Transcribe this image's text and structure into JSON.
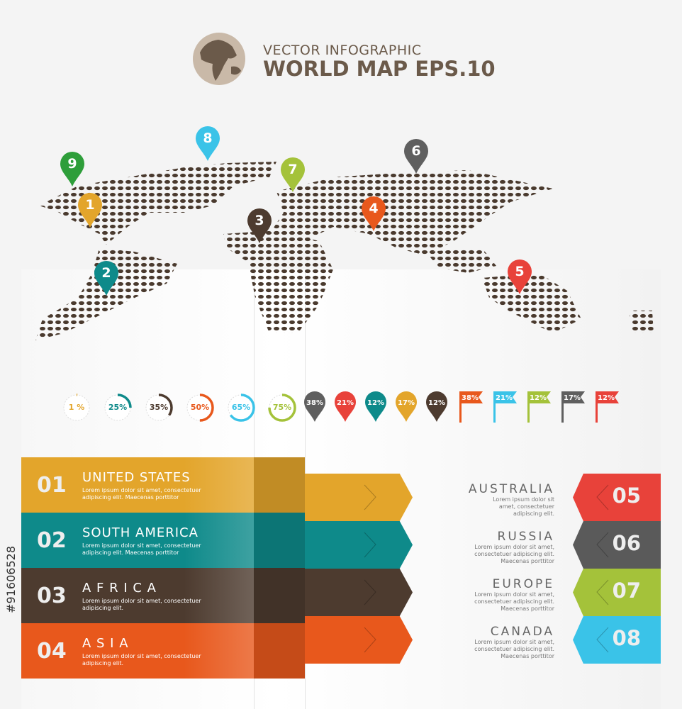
{
  "header": {
    "subtitle": "VECTOR INFOGRAPHIC",
    "title": "WORLD MAP EPS.10"
  },
  "pins": [
    {
      "n": "9",
      "color": "#2e9e3a"
    },
    {
      "n": "8",
      "color": "#3ac3e8"
    },
    {
      "n": "7",
      "color": "#a4c23a"
    },
    {
      "n": "6",
      "color": "#5f5f5f"
    },
    {
      "n": "1",
      "color": "#e3a52b"
    },
    {
      "n": "3",
      "color": "#4d3b2f"
    },
    {
      "n": "4",
      "color": "#e8581c"
    },
    {
      "n": "2",
      "color": "#0e8a8a"
    },
    {
      "n": "5",
      "color": "#e8423a"
    }
  ],
  "rings": [
    {
      "label": "1 %",
      "value": 1,
      "color": "#e3a52b"
    },
    {
      "label": "25%",
      "value": 25,
      "color": "#0e8a8a"
    },
    {
      "label": "35%",
      "value": 35,
      "color": "#4d3b2f"
    },
    {
      "label": "50%",
      "value": 50,
      "color": "#e8581c"
    },
    {
      "label": "65%",
      "value": 65,
      "color": "#3ac3e8"
    },
    {
      "label": "75%",
      "value": 75,
      "color": "#a4c23a"
    }
  ],
  "drops": [
    {
      "label": "38%",
      "color": "#5f5f5f"
    },
    {
      "label": "21%",
      "color": "#e8423a"
    },
    {
      "label": "12%",
      "color": "#0e8a8a"
    },
    {
      "label": "17%",
      "color": "#e3a52b"
    },
    {
      "label": "12%",
      "color": "#4d3b2f"
    }
  ],
  "flags": [
    {
      "label": "38%",
      "color": "#e8581c"
    },
    {
      "label": "21%",
      "color": "#3ac3e8"
    },
    {
      "label": "12%",
      "color": "#a4c23a"
    },
    {
      "label": "17%",
      "color": "#5f5f5f"
    },
    {
      "label": "12%",
      "color": "#e8423a"
    }
  ],
  "left_rows": [
    {
      "num": "01",
      "title": "UNITED STATES",
      "desc": "Lorem ipsum dolor sit amet, consectetuer adipiscing elit. Maecenas porttitor",
      "color": "#e3a52b"
    },
    {
      "num": "02",
      "title": "SOUTH AMERICA",
      "desc": "Lorem ipsum dolor sit amet, consectetuer adipiscing elit. Maecenas porttitor",
      "color": "#0e8a8a"
    },
    {
      "num": "03",
      "title": "A F R I C A",
      "desc": "Lorem ipsum dolor sit amet, consectetuer adipiscing elit.",
      "color": "#4d3b2f"
    },
    {
      "num": "04",
      "title": "A S I A",
      "desc": "Lorem ipsum dolor sit amet, consectetuer adipiscing elit.",
      "color": "#e8581c"
    }
  ],
  "right_rows": [
    {
      "num": "05",
      "title": "AUSTRALIA",
      "desc": "Lorem ipsum dolor sit amet, consectetuer adipiscing elit.",
      "color": "#e8423a"
    },
    {
      "num": "06",
      "title": "RUSSIA",
      "desc": "Lorem ipsum dolor sit amet, consectetuer adipiscing elit. Maecenas porttitor",
      "color": "#5a5a5a"
    },
    {
      "num": "07",
      "title": "EUROPE",
      "desc": "Lorem ipsum dolor sit amet, consectetuer adipiscing elit. Maecenas porttitor",
      "color": "#a4c23a"
    },
    {
      "num": "08",
      "title": "CANADA",
      "desc": "Lorem ipsum dolor sit amet, consectetuer adipiscing elit. Maecenas porttitor",
      "color": "#3ac3e8"
    }
  ],
  "watermark_id": "#91606528"
}
